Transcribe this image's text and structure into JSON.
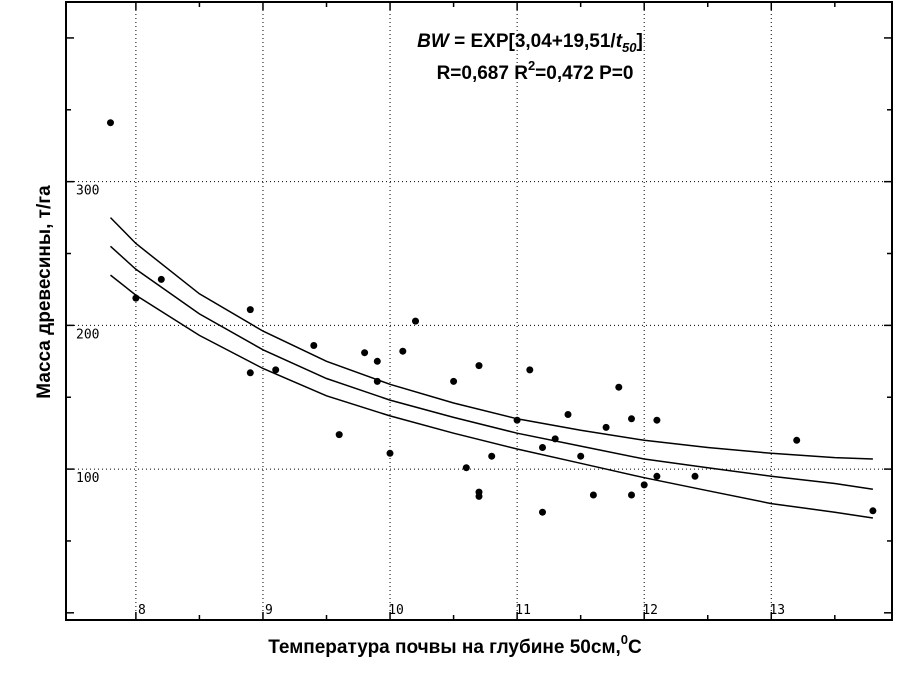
{
  "chart_data": {
    "type": "scatter",
    "title": "",
    "xlabel": "Температура почвы на глубине 50см,",
    "xlabel_unit_sup": "0",
    "xlabel_unit": "C",
    "ylabel": "Масса древесины, т/га",
    "equation": {
      "lhs": "BW",
      "eq": " = ",
      "body": "EXP[3,04+19,51/",
      "var": "t",
      "sub": "50",
      "close": "]"
    },
    "stats": {
      "r_text": "R=0,687 R",
      "sup": "2",
      "rest": "=0,472 P=0"
    },
    "xlim": [
      7.45,
      13.95
    ],
    "ylim": [
      -5,
      425
    ],
    "x_ticks": [
      8,
      9,
      10,
      11,
      12,
      13
    ],
    "x_tick_labels": [
      "8",
      "9",
      "10",
      "11",
      "12",
      "13"
    ],
    "y_ticks": [
      100,
      200,
      300
    ],
    "y_tick_labels": [
      "100",
      "200",
      "300"
    ],
    "grid": "dotted",
    "points": [
      {
        "x": 7.8,
        "y": 341
      },
      {
        "x": 8.0,
        "y": 219
      },
      {
        "x": 8.2,
        "y": 232
      },
      {
        "x": 8.9,
        "y": 211
      },
      {
        "x": 8.9,
        "y": 167
      },
      {
        "x": 9.1,
        "y": 169
      },
      {
        "x": 9.4,
        "y": 186
      },
      {
        "x": 9.6,
        "y": 124
      },
      {
        "x": 9.8,
        "y": 181
      },
      {
        "x": 9.9,
        "y": 175
      },
      {
        "x": 9.9,
        "y": 161
      },
      {
        "x": 10.0,
        "y": 111
      },
      {
        "x": 10.1,
        "y": 182
      },
      {
        "x": 10.2,
        "y": 203
      },
      {
        "x": 10.5,
        "y": 161
      },
      {
        "x": 10.6,
        "y": 101
      },
      {
        "x": 10.7,
        "y": 172
      },
      {
        "x": 10.7,
        "y": 84
      },
      {
        "x": 10.7,
        "y": 81
      },
      {
        "x": 10.8,
        "y": 109
      },
      {
        "x": 11.0,
        "y": 134
      },
      {
        "x": 11.1,
        "y": 169
      },
      {
        "x": 11.2,
        "y": 115
      },
      {
        "x": 11.2,
        "y": 70
      },
      {
        "x": 11.3,
        "y": 121
      },
      {
        "x": 11.4,
        "y": 138
      },
      {
        "x": 11.5,
        "y": 109
      },
      {
        "x": 11.6,
        "y": 82
      },
      {
        "x": 11.7,
        "y": 129
      },
      {
        "x": 11.8,
        "y": 157
      },
      {
        "x": 11.9,
        "y": 135
      },
      {
        "x": 11.9,
        "y": 82
      },
      {
        "x": 12.0,
        "y": 89
      },
      {
        "x": 12.1,
        "y": 134
      },
      {
        "x": 12.1,
        "y": 95
      },
      {
        "x": 12.4,
        "y": 95
      },
      {
        "x": 13.2,
        "y": 120
      },
      {
        "x": 13.8,
        "y": 71
      }
    ],
    "fit": {
      "x": [
        7.8,
        8.0,
        8.5,
        9.0,
        9.5,
        10.0,
        10.5,
        11.0,
        11.5,
        12.0,
        12.5,
        13.0,
        13.5,
        13.8
      ],
      "y": [
        255,
        239,
        208,
        183,
        163,
        148,
        136,
        125,
        116,
        107,
        101,
        95,
        90,
        86
      ],
      "upper": [
        275,
        257,
        222,
        196,
        175,
        159,
        146,
        135,
        127,
        120,
        115,
        111,
        108,
        107
      ],
      "lower": [
        235,
        221,
        193,
        170,
        151,
        137,
        125,
        114,
        104,
        94,
        85,
        76,
        70,
        66
      ]
    }
  }
}
